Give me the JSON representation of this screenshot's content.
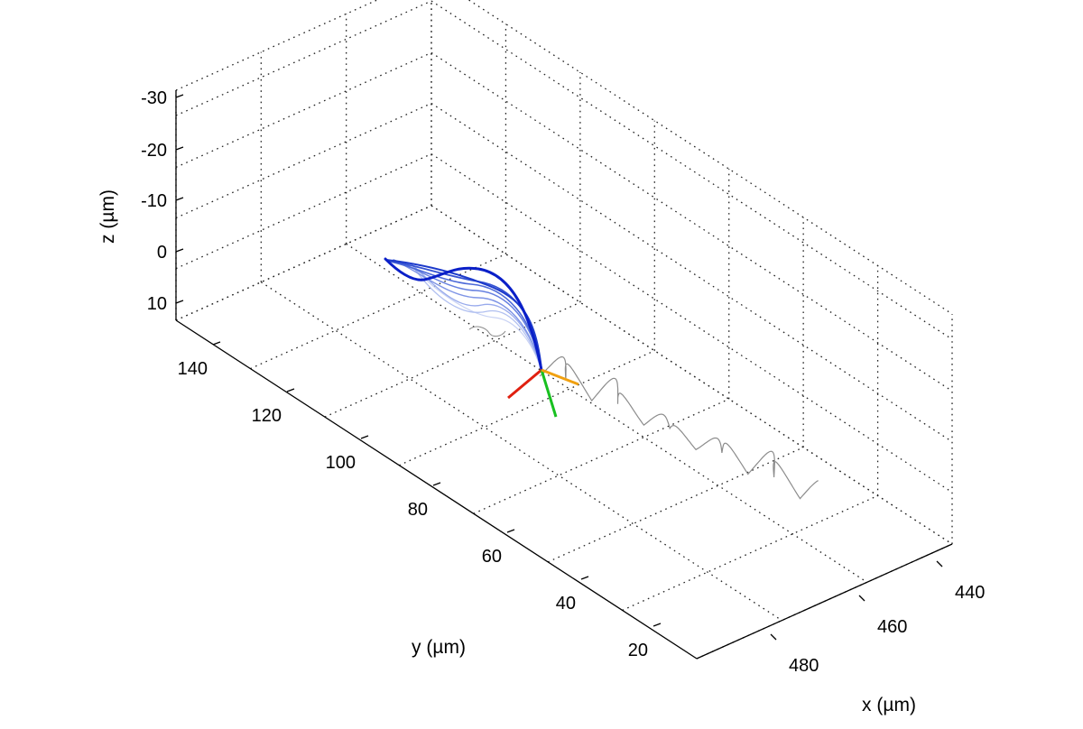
{
  "chart_data": {
    "type": "line3d",
    "title": "",
    "xlabel": "x (µm)",
    "ylabel": "y (µm)",
    "zlabel": "z (µm)",
    "xlim": [
      440,
      490
    ],
    "ylim": [
      10,
      150
    ],
    "zlim": [
      -30,
      12
    ],
    "z_reversed": true,
    "grid": true,
    "x_ticks": [
      "440",
      "460",
      "480"
    ],
    "y_ticks": [
      "140",
      "120",
      "100",
      "80",
      "60",
      "40",
      "20"
    ],
    "z_ticks": [
      "-30",
      "-20",
      "-10",
      "0",
      "10"
    ],
    "colors": {
      "flagellum_dark": "#0a1fc8",
      "flagellum_light": "#b8c6f2",
      "trajectory": "#8c8c8c",
      "frame_x": "#e02010",
      "frame_y": "#18c020",
      "frame_z": "#f0a010"
    }
  }
}
